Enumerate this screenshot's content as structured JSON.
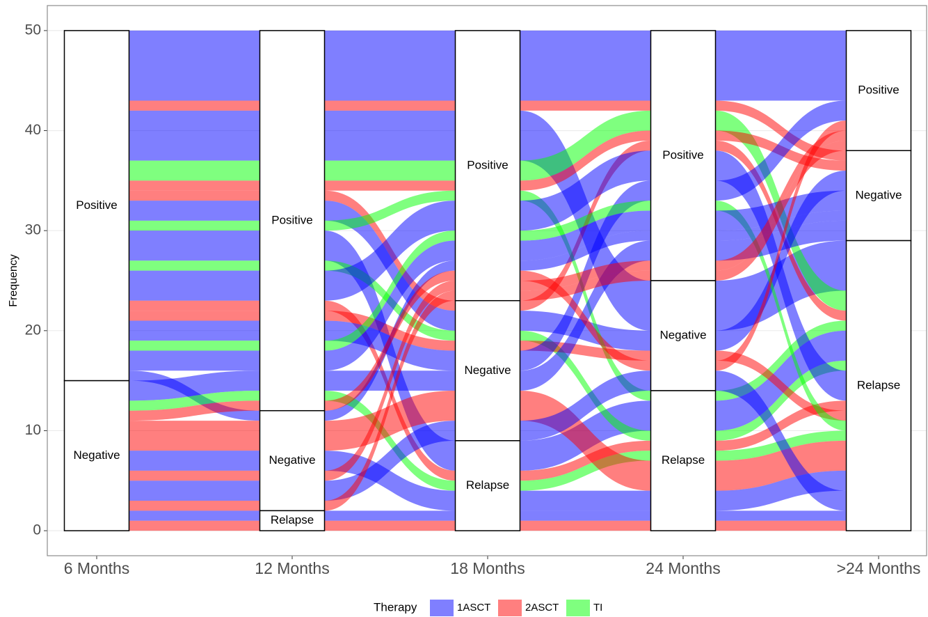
{
  "chart_data": {
    "type": "alluvial",
    "y_label": "Frequency",
    "categories": [
      "6 Months",
      "12 Months",
      "18 Months",
      "24 Months",
      ">24 Months"
    ],
    "strata": [
      "Positive",
      "Negative",
      "Relapse"
    ],
    "legend_title": "Therapy",
    "legend_position": "bottom",
    "grid": true,
    "series": [
      {
        "name": "1ASCT",
        "color": "#0000ff"
      },
      {
        "name": "2ASCT",
        "color": "#ff0000"
      },
      {
        "name": "TI",
        "color": "#00ff00"
      }
    ],
    "flows": [
      {
        "therapy": "1ASCT",
        "count": 7,
        "path": [
          "Positive",
          "Positive",
          "Positive",
          "Positive",
          "Positive"
        ]
      },
      {
        "therapy": "2ASCT",
        "count": 1,
        "path": [
          "Positive",
          "Positive",
          "Positive",
          "Positive",
          "Negative"
        ]
      },
      {
        "therapy": "1ASCT",
        "count": 5,
        "path": [
          "Positive",
          "Positive",
          "Positive",
          "Negative",
          "Relapse"
        ]
      },
      {
        "therapy": "TI",
        "count": 2,
        "path": [
          "Positive",
          "Positive",
          "Positive",
          "Positive",
          "Relapse"
        ]
      },
      {
        "therapy": "2ASCT",
        "count": 1,
        "path": [
          "Positive",
          "Positive",
          "Positive",
          "Positive",
          "Negative"
        ]
      },
      {
        "therapy": "2ASCT",
        "count": 1,
        "path": [
          "Positive",
          "Positive",
          "Negative",
          "Positive",
          "Relapse"
        ]
      },
      {
        "therapy": "1ASCT",
        "count": 2,
        "path": [
          "Positive",
          "Positive",
          "Negative",
          "Negative",
          "Negative"
        ]
      },
      {
        "therapy": "TI",
        "count": 1,
        "path": [
          "Positive",
          "Positive",
          "Positive",
          "Relapse",
          "Relapse"
        ]
      },
      {
        "therapy": "1ASCT",
        "count": 3,
        "path": [
          "Positive",
          "Positive",
          "Relapse",
          "Relapse",
          "Relapse"
        ]
      },
      {
        "therapy": "TI",
        "count": 1,
        "path": [
          "Positive",
          "Positive",
          "Negative",
          "Relapse",
          "Relapse"
        ]
      },
      {
        "therapy": "1ASCT",
        "count": 3,
        "path": [
          "Positive",
          "Positive",
          "Positive",
          "Positive",
          "Relapse"
        ]
      },
      {
        "therapy": "2ASCT",
        "count": 1,
        "path": [
          "Positive",
          "Positive",
          "Relapse",
          "Relapse",
          "Relapse"
        ]
      },
      {
        "therapy": "2ASCT",
        "count": 1,
        "path": [
          "Positive",
          "Positive",
          "Negative",
          "Negative",
          "Relapse"
        ]
      },
      {
        "therapy": "1ASCT",
        "count": 2,
        "path": [
          "Positive",
          "Positive",
          "Negative",
          "Positive",
          "Positive"
        ]
      },
      {
        "therapy": "TI",
        "count": 1,
        "path": [
          "Positive",
          "Positive",
          "Positive",
          "Positive",
          "Relapse"
        ]
      },
      {
        "therapy": "1ASCT",
        "count": 2,
        "path": [
          "Positive",
          "Positive",
          "Positive",
          "Positive",
          "Negative"
        ]
      },
      {
        "therapy": "1ASCT",
        "count": 1,
        "path": [
          "Positive",
          "Negative",
          "Positive",
          "Positive",
          "Negative"
        ]
      },
      {
        "therapy": "1ASCT",
        "count": 2,
        "path": [
          "Negative",
          "Positive",
          "Negative",
          "Positive",
          "Negative"
        ]
      },
      {
        "therapy": "TI",
        "count": 1,
        "path": [
          "Negative",
          "Positive",
          "Relapse",
          "Relapse",
          "Relapse"
        ]
      },
      {
        "therapy": "2ASCT",
        "count": 1,
        "path": [
          "Negative",
          "Positive",
          "Positive",
          "Negative",
          "Positive"
        ]
      },
      {
        "therapy": "2ASCT",
        "count": 3,
        "path": [
          "Negative",
          "Negative",
          "Negative",
          "Relapse",
          "Relapse"
        ]
      },
      {
        "therapy": "1ASCT",
        "count": 2,
        "path": [
          "Negative",
          "Negative",
          "Relapse",
          "Relapse",
          "Relapse"
        ]
      },
      {
        "therapy": "2ASCT",
        "count": 1,
        "path": [
          "Negative",
          "Negative",
          "Positive",
          "Positive",
          "Positive"
        ]
      },
      {
        "therapy": "1ASCT",
        "count": 2,
        "path": [
          "Negative",
          "Negative",
          "Negative",
          "Negative",
          "Relapse"
        ]
      },
      {
        "therapy": "2ASCT",
        "count": 1,
        "path": [
          "Negative",
          "Negative",
          "Positive",
          "Positive",
          "Positive"
        ]
      },
      {
        "therapy": "1ASCT",
        "count": 1,
        "path": [
          "Negative",
          "Relapse",
          "Relapse",
          "Relapse",
          "Relapse"
        ]
      },
      {
        "therapy": "2ASCT",
        "count": 1,
        "path": [
          "Negative",
          "Relapse",
          "Relapse",
          "Relapse",
          "Relapse"
        ]
      }
    ],
    "ylim": [
      -2.5,
      52.5
    ],
    "yticks": [
      0,
      10,
      20,
      30,
      40,
      50
    ]
  }
}
